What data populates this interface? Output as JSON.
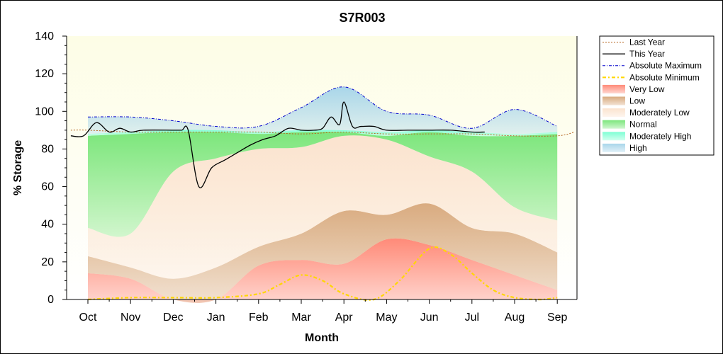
{
  "chart_data": {
    "type": "area",
    "title": "S7R003",
    "xlabel": "Month",
    "ylabel": "% Storage",
    "ylim": [
      0,
      140
    ],
    "yticks": [
      0,
      20,
      40,
      60,
      80,
      100,
      120,
      140
    ],
    "categories": [
      "Oct",
      "Nov",
      "Dec",
      "Jan",
      "Feb",
      "Mar",
      "Apr",
      "May",
      "Jun",
      "Jul",
      "Aug",
      "Sep"
    ],
    "legend_position": "right",
    "colors": {
      "plot_background": "#fdfde6",
      "very_low": "#ff8a78",
      "low": "#d9ab80",
      "moderately_low": "#fbe3cf",
      "normal": "#7ce67c",
      "moderately_high": "#7fffd4",
      "high": "#a9d6ea",
      "last_year": "#b5651d",
      "this_year": "#000000",
      "absolute_maximum": "#0000cc",
      "absolute_minimum": "#ffd700"
    },
    "bands": [
      {
        "name": "Very Low",
        "key": "very_low",
        "top": [
          14,
          11,
          0,
          0,
          18,
          21,
          19,
          32,
          29,
          21,
          13,
          5
        ]
      },
      {
        "name": "Low",
        "key": "low",
        "top": [
          23,
          17,
          11,
          17,
          28,
          35,
          47,
          45,
          51,
          38,
          35,
          25
        ]
      },
      {
        "name": "Moderately Low",
        "key": "moderately_low",
        "top": [
          38,
          35,
          68,
          75,
          80,
          81,
          87,
          85,
          76,
          68,
          49,
          42
        ]
      },
      {
        "name": "Normal",
        "key": "normal",
        "top": [
          87,
          88,
          89,
          89,
          88,
          89,
          89,
          87,
          89,
          87,
          87,
          88
        ]
      },
      {
        "name": "Moderately High",
        "key": "moderately_high",
        "top": [
          88,
          89,
          90,
          90,
          89,
          90,
          90,
          89,
          90,
          89,
          88,
          89
        ]
      },
      {
        "name": "High",
        "key": "high",
        "top": [
          97,
          97,
          95,
          92,
          92,
          102,
          113,
          100,
          98,
          91,
          101,
          92
        ]
      }
    ],
    "series": [
      {
        "name": "Last Year",
        "key": "last_year",
        "style": "dotted",
        "x": [
          -0.4,
          0,
          1,
          2,
          3,
          4,
          5,
          6,
          7,
          8,
          9,
          10,
          11,
          11.4
        ],
        "y": [
          90,
          90,
          89,
          89,
          89,
          89,
          88,
          89,
          88,
          88,
          88,
          87,
          87,
          89
        ]
      },
      {
        "name": "This Year",
        "key": "this_year",
        "style": "solid",
        "x": [
          -0.4,
          -0.1,
          0.2,
          0.5,
          0.75,
          1.0,
          1.3,
          2.0,
          2.2,
          2.35,
          2.6,
          2.9,
          3.2,
          3.5,
          3.8,
          4.1,
          4.4,
          4.7,
          5.0,
          5.3,
          5.5,
          5.7,
          5.9,
          6.0,
          6.2,
          6.4,
          6.7,
          7.0,
          7.5,
          8.0,
          8.5,
          9.0,
          9.3
        ],
        "y": [
          87,
          87,
          94,
          89,
          91,
          89,
          90,
          90,
          90,
          90,
          60,
          70,
          74,
          78,
          82,
          85,
          87,
          91,
          90,
          90,
          91,
          97,
          93,
          105,
          92,
          92,
          92,
          90,
          90,
          90,
          90,
          89,
          89
        ]
      },
      {
        "name": "Absolute Maximum",
        "key": "absolute_maximum",
        "style": "dashdot",
        "x": [
          0,
          1,
          2,
          3,
          4,
          5,
          6,
          7,
          8,
          9,
          10,
          11
        ],
        "y": [
          97,
          97,
          95,
          92,
          92,
          102,
          113,
          100,
          98,
          91,
          101,
          92
        ]
      },
      {
        "name": "Absolute Minimum",
        "key": "absolute_minimum",
        "style": "dashdot-thick",
        "x": [
          0,
          1,
          2,
          3,
          4,
          4.5,
          5,
          5.5,
          6,
          6.7,
          7.3,
          8,
          8.5,
          9,
          9.5,
          10,
          10.6,
          11
        ],
        "y": [
          0,
          1,
          1,
          1,
          3,
          8,
          13,
          10,
          3,
          0,
          10,
          27,
          24,
          14,
          5,
          1,
          0,
          1
        ]
      }
    ],
    "legend": [
      {
        "label": "Last Year",
        "key": "last_year",
        "kind": "line",
        "style": "dotted"
      },
      {
        "label": "This Year",
        "key": "this_year",
        "kind": "line",
        "style": "solid"
      },
      {
        "label": "Absolute Maximum",
        "key": "absolute_maximum",
        "kind": "line",
        "style": "dashdot"
      },
      {
        "label": "Absolute Minimum",
        "key": "absolute_minimum",
        "kind": "line",
        "style": "dashdot-thick"
      },
      {
        "label": "Very Low",
        "key": "very_low",
        "kind": "fill"
      },
      {
        "label": "Low",
        "key": "low",
        "kind": "fill"
      },
      {
        "label": "Moderately Low",
        "key": "moderately_low",
        "kind": "fill"
      },
      {
        "label": "Normal",
        "key": "normal",
        "kind": "fill"
      },
      {
        "label": "Moderately High",
        "key": "moderately_high",
        "kind": "fill"
      },
      {
        "label": "High",
        "key": "high",
        "kind": "fill"
      }
    ]
  }
}
